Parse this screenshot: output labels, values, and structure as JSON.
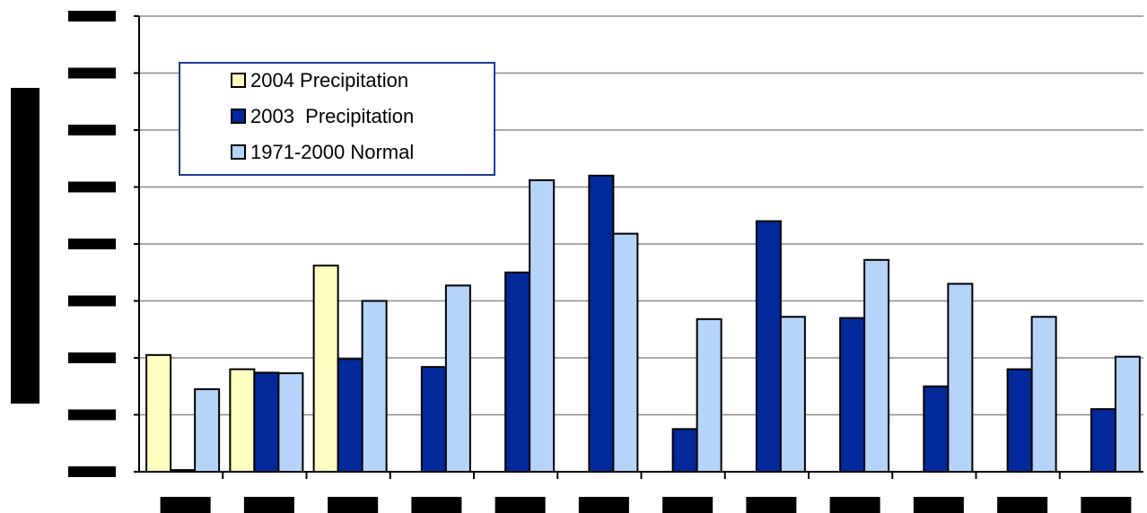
{
  "chart_data": {
    "type": "bar",
    "title": "",
    "xlabel": "",
    "ylabel": "",
    "categories": [
      "",
      "",
      "",
      "",
      "",
      "",
      "",
      "",
      "",
      "",
      "",
      ""
    ],
    "ylim": [
      0,
      8
    ],
    "grid": true,
    "legend_position": "top-left",
    "series": [
      {
        "name": "2004 Precipitation",
        "color": "#FFFFC0",
        "values": [
          2.05,
          1.8,
          3.62,
          null,
          null,
          null,
          null,
          null,
          null,
          null,
          null,
          null
        ]
      },
      {
        "name": "2003  Precipitation",
        "color": "#002A9C",
        "values": [
          0.03,
          1.74,
          1.98,
          1.84,
          3.5,
          5.2,
          0.75,
          4.4,
          2.7,
          1.5,
          1.8,
          1.1
        ]
      },
      {
        "name": "1971-2000 Normal",
        "color": "#B4D4FA",
        "values": [
          1.45,
          1.73,
          3.0,
          3.27,
          5.12,
          4.18,
          2.68,
          2.72,
          3.72,
          3.3,
          2.72,
          2.02
        ]
      }
    ]
  }
}
